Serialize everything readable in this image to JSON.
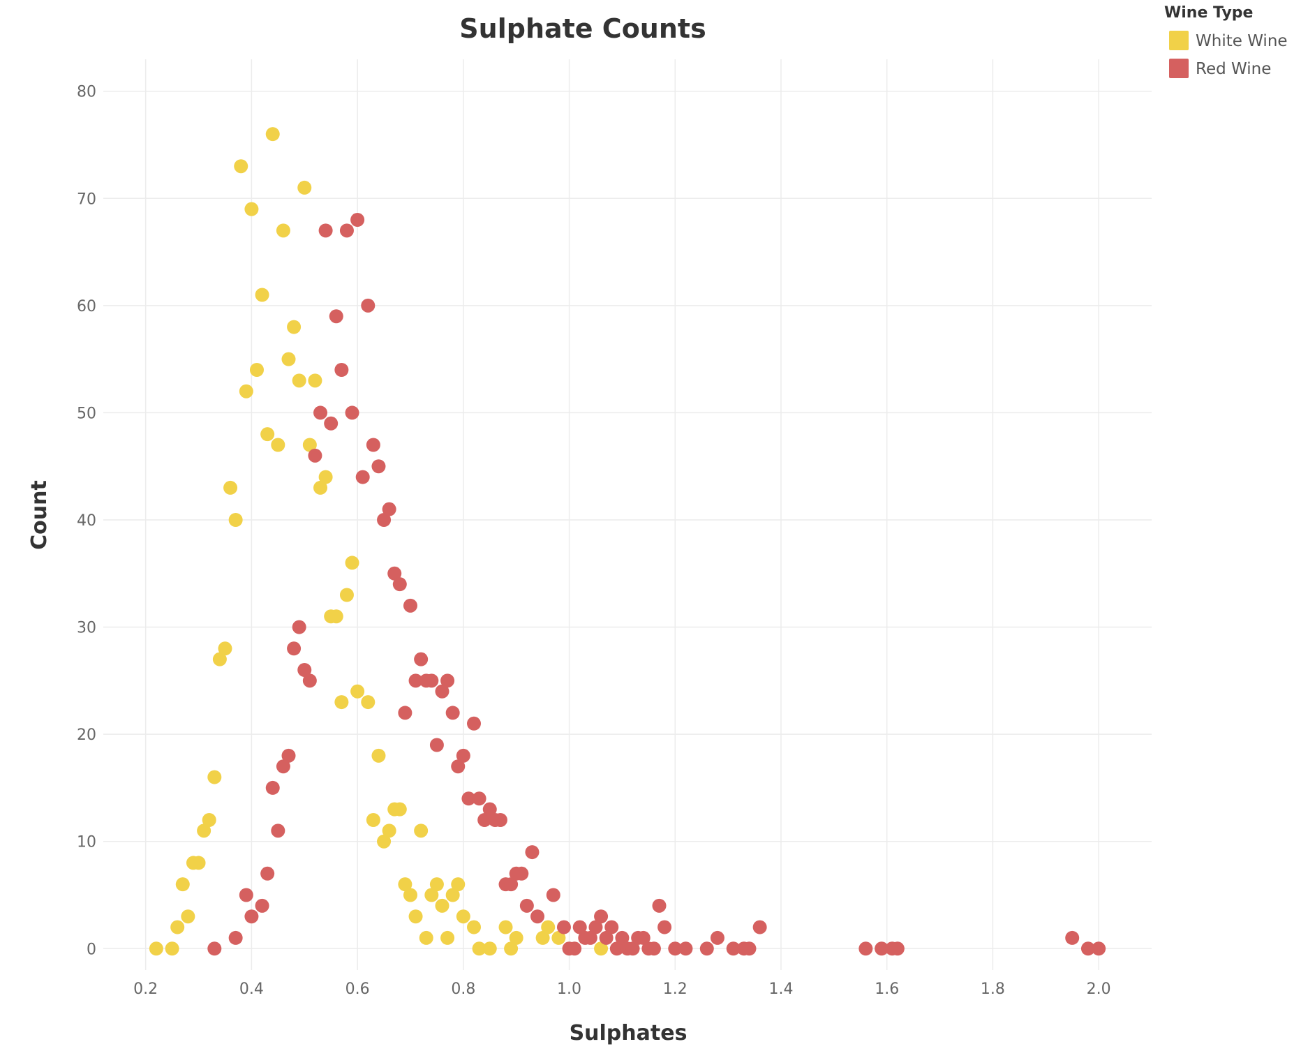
{
  "chart_data": {
    "type": "scatter",
    "title": "Sulphate Counts",
    "xlabel": "Sulphates",
    "ylabel": "Count",
    "xlim": [
      0.12,
      2.1
    ],
    "ylim": [
      -2,
      82
    ],
    "x_ticks": [
      "0.2",
      "0.4",
      "0.6",
      "0.8",
      "1.0",
      "1.2",
      "1.4",
      "1.6",
      "1.8",
      "2.0"
    ],
    "y_ticks": [
      "0",
      "10",
      "20",
      "30",
      "40",
      "50",
      "60",
      "70",
      "80"
    ],
    "grid": true,
    "legend": {
      "title": "Wine Type",
      "position": "top-right"
    },
    "series": [
      {
        "name": "White Wine",
        "color": "#f1d148",
        "points": [
          [
            0.22,
            0
          ],
          [
            0.25,
            0
          ],
          [
            0.26,
            2
          ],
          [
            0.27,
            6
          ],
          [
            0.28,
            3
          ],
          [
            0.29,
            8
          ],
          [
            0.3,
            8
          ],
          [
            0.31,
            11
          ],
          [
            0.32,
            12
          ],
          [
            0.33,
            16
          ],
          [
            0.34,
            27
          ],
          [
            0.35,
            28
          ],
          [
            0.36,
            43
          ],
          [
            0.37,
            40
          ],
          [
            0.38,
            73
          ],
          [
            0.39,
            52
          ],
          [
            0.4,
            69
          ],
          [
            0.41,
            54
          ],
          [
            0.42,
            61
          ],
          [
            0.43,
            48
          ],
          [
            0.44,
            76
          ],
          [
            0.45,
            47
          ],
          [
            0.46,
            67
          ],
          [
            0.47,
            55
          ],
          [
            0.48,
            58
          ],
          [
            0.49,
            53
          ],
          [
            0.5,
            71
          ],
          [
            0.51,
            47
          ],
          [
            0.52,
            53
          ],
          [
            0.53,
            43
          ],
          [
            0.54,
            44
          ],
          [
            0.55,
            31
          ],
          [
            0.56,
            31
          ],
          [
            0.57,
            23
          ],
          [
            0.58,
            33
          ],
          [
            0.59,
            36
          ],
          [
            0.6,
            24
          ],
          [
            0.62,
            23
          ],
          [
            0.63,
            12
          ],
          [
            0.64,
            18
          ],
          [
            0.65,
            10
          ],
          [
            0.66,
            11
          ],
          [
            0.67,
            13
          ],
          [
            0.68,
            13
          ],
          [
            0.69,
            6
          ],
          [
            0.7,
            5
          ],
          [
            0.71,
            3
          ],
          [
            0.72,
            11
          ],
          [
            0.73,
            1
          ],
          [
            0.74,
            5
          ],
          [
            0.75,
            6
          ],
          [
            0.76,
            4
          ],
          [
            0.77,
            1
          ],
          [
            0.78,
            5
          ],
          [
            0.79,
            6
          ],
          [
            0.8,
            3
          ],
          [
            0.82,
            2
          ],
          [
            0.83,
            0
          ],
          [
            0.85,
            0
          ],
          [
            0.88,
            2
          ],
          [
            0.89,
            0
          ],
          [
            0.9,
            1
          ],
          [
            0.95,
            1
          ],
          [
            0.96,
            2
          ],
          [
            0.98,
            1
          ],
          [
            1.06,
            0
          ]
        ]
      },
      {
        "name": "Red Wine",
        "color": "#d5605f",
        "points": [
          [
            0.33,
            0
          ],
          [
            0.37,
            1
          ],
          [
            0.39,
            5
          ],
          [
            0.4,
            3
          ],
          [
            0.42,
            4
          ],
          [
            0.43,
            7
          ],
          [
            0.44,
            15
          ],
          [
            0.45,
            11
          ],
          [
            0.46,
            17
          ],
          [
            0.47,
            18
          ],
          [
            0.48,
            28
          ],
          [
            0.49,
            30
          ],
          [
            0.5,
            26
          ],
          [
            0.51,
            25
          ],
          [
            0.52,
            46
          ],
          [
            0.53,
            50
          ],
          [
            0.54,
            67
          ],
          [
            0.55,
            49
          ],
          [
            0.56,
            59
          ],
          [
            0.57,
            54
          ],
          [
            0.58,
            67
          ],
          [
            0.59,
            50
          ],
          [
            0.6,
            68
          ],
          [
            0.61,
            44
          ],
          [
            0.62,
            60
          ],
          [
            0.63,
            47
          ],
          [
            0.64,
            45
          ],
          [
            0.65,
            40
          ],
          [
            0.66,
            41
          ],
          [
            0.67,
            35
          ],
          [
            0.68,
            34
          ],
          [
            0.69,
            22
          ],
          [
            0.7,
            32
          ],
          [
            0.71,
            25
          ],
          [
            0.72,
            27
          ],
          [
            0.73,
            25
          ],
          [
            0.74,
            25
          ],
          [
            0.75,
            19
          ],
          [
            0.76,
            24
          ],
          [
            0.77,
            25
          ],
          [
            0.78,
            22
          ],
          [
            0.79,
            17
          ],
          [
            0.8,
            18
          ],
          [
            0.81,
            14
          ],
          [
            0.82,
            21
          ],
          [
            0.83,
            14
          ],
          [
            0.84,
            12
          ],
          [
            0.85,
            13
          ],
          [
            0.86,
            12
          ],
          [
            0.87,
            12
          ],
          [
            0.88,
            6
          ],
          [
            0.89,
            6
          ],
          [
            0.9,
            7
          ],
          [
            0.91,
            7
          ],
          [
            0.92,
            4
          ],
          [
            0.93,
            9
          ],
          [
            0.94,
            3
          ],
          [
            0.97,
            5
          ],
          [
            0.99,
            2
          ],
          [
            1.0,
            0
          ],
          [
            1.01,
            0
          ],
          [
            1.02,
            2
          ],
          [
            1.03,
            1
          ],
          [
            1.04,
            1
          ],
          [
            1.05,
            2
          ],
          [
            1.06,
            3
          ],
          [
            1.07,
            1
          ],
          [
            1.08,
            2
          ],
          [
            1.09,
            0
          ],
          [
            1.1,
            1
          ],
          [
            1.11,
            0
          ],
          [
            1.12,
            0
          ],
          [
            1.13,
            1
          ],
          [
            1.14,
            1
          ],
          [
            1.15,
            0
          ],
          [
            1.16,
            0
          ],
          [
            1.17,
            4
          ],
          [
            1.18,
            2
          ],
          [
            1.2,
            0
          ],
          [
            1.22,
            0
          ],
          [
            1.26,
            0
          ],
          [
            1.28,
            1
          ],
          [
            1.31,
            0
          ],
          [
            1.33,
            0
          ],
          [
            1.34,
            0
          ],
          [
            1.36,
            2
          ],
          [
            1.56,
            0
          ],
          [
            1.59,
            0
          ],
          [
            1.61,
            0
          ],
          [
            1.62,
            0
          ],
          [
            1.95,
            1
          ],
          [
            1.98,
            0
          ],
          [
            2.0,
            0
          ]
        ]
      }
    ]
  }
}
